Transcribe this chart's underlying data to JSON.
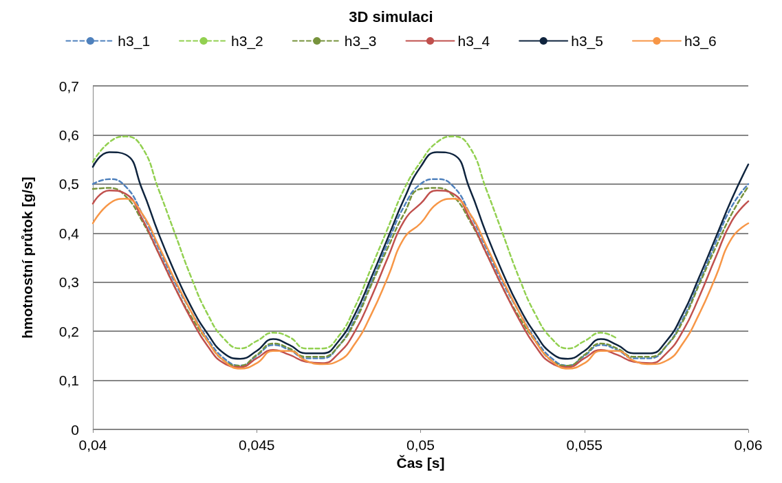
{
  "chart_data": {
    "type": "line",
    "title": "3D simulaci",
    "xlabel": "Čas [s]",
    "ylabel": "hmotnostní průtok [g/s]",
    "x": [
      0.04,
      0.0405,
      0.041,
      0.0415,
      0.042,
      0.0425,
      0.043,
      0.0435,
      0.044,
      0.0445,
      0.045,
      0.0455,
      0.046,
      0.0465,
      0.047,
      0.0475,
      0.048,
      0.0485,
      0.049,
      0.0495,
      0.05,
      0.0505,
      0.051,
      0.0515,
      0.052,
      0.0525,
      0.053,
      0.0535,
      0.054,
      0.0545,
      0.055,
      0.0555,
      0.056,
      0.0565,
      0.057,
      0.0575,
      0.058,
      0.0585,
      0.059,
      0.0595,
      0.06
    ],
    "series": [
      {
        "name": "h3_1",
        "color": "#4f81bd",
        "line_style": "dashed",
        "values": [
          0.5,
          0.51,
          0.495,
          0.44,
          0.37,
          0.3,
          0.24,
          0.185,
          0.145,
          0.13,
          0.15,
          0.172,
          0.162,
          0.145,
          0.145,
          0.17,
          0.225,
          0.3,
          0.38,
          0.455,
          0.5,
          0.51,
          0.495,
          0.44,
          0.37,
          0.3,
          0.24,
          0.185,
          0.145,
          0.13,
          0.15,
          0.172,
          0.162,
          0.145,
          0.145,
          0.17,
          0.225,
          0.3,
          0.38,
          0.455,
          0.5
        ]
      },
      {
        "name": "h3_2",
        "color": "#92d050",
        "line_style": "dashed",
        "values": [
          0.545,
          0.585,
          0.597,
          0.575,
          0.49,
          0.4,
          0.31,
          0.235,
          0.185,
          0.165,
          0.18,
          0.197,
          0.188,
          0.165,
          0.165,
          0.19,
          0.25,
          0.33,
          0.41,
          0.49,
          0.545,
          0.585,
          0.597,
          0.575,
          0.49,
          0.4,
          0.31,
          0.235,
          0.185,
          0.165,
          0.18,
          0.197,
          0.185,
          null,
          null,
          null,
          null,
          null,
          null,
          null,
          null
        ]
      },
      {
        "name": "h3_3",
        "color": "#77933c",
        "line_style": "dashed",
        "values": [
          0.49,
          0.492,
          0.475,
          0.425,
          0.36,
          0.29,
          0.23,
          0.18,
          0.14,
          0.13,
          0.152,
          0.175,
          0.165,
          0.148,
          0.148,
          0.17,
          0.22,
          0.295,
          0.37,
          0.44,
          0.49,
          0.492,
          0.475,
          0.425,
          0.36,
          0.29,
          0.23,
          0.18,
          0.14,
          0.13,
          0.152,
          0.175,
          0.165,
          0.148,
          0.148,
          0.17,
          0.22,
          0.295,
          0.37,
          0.44,
          0.495
        ]
      },
      {
        "name": "h3_4",
        "color": "#c0504d",
        "line_style": "solid",
        "values": [
          0.46,
          0.487,
          0.48,
          0.43,
          0.36,
          0.29,
          0.225,
          0.17,
          0.135,
          0.127,
          0.145,
          0.162,
          0.152,
          0.138,
          0.135,
          0.155,
          0.2,
          0.27,
          0.35,
          0.425,
          0.46,
          0.487,
          0.48,
          0.43,
          0.36,
          0.29,
          0.225,
          0.17,
          0.135,
          0.127,
          0.145,
          0.162,
          0.152,
          0.138,
          0.135,
          0.155,
          0.2,
          0.27,
          0.35,
          0.425,
          0.465
        ]
      },
      {
        "name": "h3_5",
        "color": "#0f243e",
        "line_style": "solid",
        "values": [
          0.535,
          0.565,
          0.56,
          0.49,
          0.4,
          0.32,
          0.25,
          0.195,
          0.155,
          0.144,
          0.16,
          0.184,
          0.172,
          0.155,
          0.155,
          0.18,
          0.235,
          0.31,
          0.39,
          0.47,
          0.535,
          0.565,
          0.56,
          0.49,
          0.4,
          0.32,
          0.25,
          0.195,
          0.155,
          0.144,
          0.16,
          0.184,
          0.172,
          0.155,
          0.155,
          0.18,
          0.235,
          0.31,
          0.39,
          0.47,
          0.54
        ]
      },
      {
        "name": "h3_6",
        "color": "#f79646",
        "line_style": "solid",
        "values": [
          0.42,
          0.46,
          0.47,
          0.44,
          0.375,
          0.305,
          0.24,
          0.18,
          0.14,
          0.124,
          0.135,
          0.16,
          0.16,
          0.14,
          0.133,
          0.14,
          0.175,
          0.235,
          0.31,
          0.39,
          0.42,
          0.46,
          0.47,
          0.44,
          0.375,
          0.305,
          0.24,
          0.18,
          0.14,
          0.124,
          0.135,
          0.16,
          0.16,
          0.14,
          0.133,
          0.14,
          0.175,
          0.235,
          0.31,
          0.39,
          0.42
        ]
      }
    ],
    "xlim": [
      0.04,
      0.06
    ],
    "xticks": [
      {
        "value": 0.04,
        "label": "0,04"
      },
      {
        "value": 0.045,
        "label": "0,045"
      },
      {
        "value": 0.05,
        "label": "0,05"
      },
      {
        "value": 0.055,
        "label": "0,055"
      },
      {
        "value": 0.06,
        "label": "0,06"
      }
    ],
    "ylim": [
      0,
      0.7
    ],
    "yticks": [
      {
        "value": 0,
        "label": "0"
      },
      {
        "value": 0.1,
        "label": "0,1"
      },
      {
        "value": 0.2,
        "label": "0,2"
      },
      {
        "value": 0.3,
        "label": "0,3"
      },
      {
        "value": 0.4,
        "label": "0,4"
      },
      {
        "value": 0.5,
        "label": "0,5"
      },
      {
        "value": 0.6,
        "label": "0,6"
      },
      {
        "value": 0.7,
        "label": "0,7"
      }
    ],
    "grid": "y",
    "legend": "top",
    "marker": "none"
  }
}
